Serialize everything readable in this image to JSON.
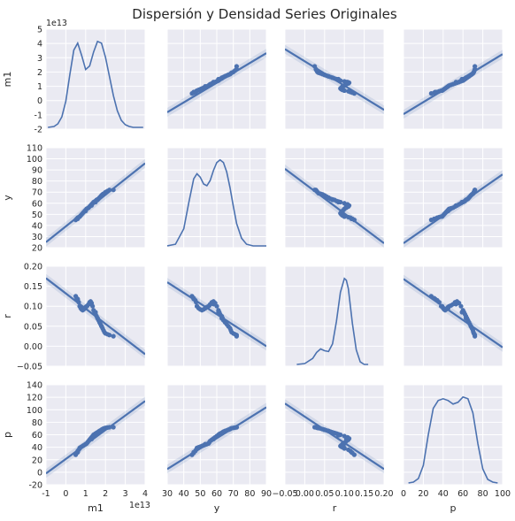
{
  "chart_data": {
    "type": "pairplot",
    "title": "Dispersión y Densidad Series Originales",
    "variables": [
      "m1",
      "y",
      "r",
      "p"
    ],
    "diag_kind": "kde",
    "off_diag_kind": "reg",
    "style": {
      "background": "#eaeaf2",
      "grid": true,
      "grid_color": "#ffffff",
      "series_color": "#4c72b0"
    },
    "axes": {
      "m1": {
        "label": "m1",
        "lim": [
          -1,
          4
        ],
        "ticks": [
          -1,
          0,
          1,
          2,
          3,
          4
        ],
        "y_lim": [
          -2,
          5
        ],
        "y_ticks": [
          -2,
          -1,
          0,
          1,
          2,
          3,
          4,
          5
        ],
        "offset_label": "1e13"
      },
      "y": {
        "label": "y",
        "lim": [
          30,
          90
        ],
        "ticks": [
          30,
          40,
          50,
          60,
          70,
          80,
          90
        ],
        "y_lim": [
          20,
          110
        ],
        "y_ticks": [
          20,
          30,
          40,
          50,
          60,
          70,
          80,
          90,
          100,
          110
        ]
      },
      "r": {
        "label": "r",
        "lim": [
          -0.05,
          0.2
        ],
        "ticks": [
          "−0.05",
          "0.00",
          "0.05",
          "0.10",
          "0.15",
          "0.20"
        ],
        "y_lim": [
          -0.05,
          0.2
        ],
        "y_ticks": [
          "−0.05",
          "0.00",
          "0.05",
          "0.10",
          "0.15",
          "0.20"
        ]
      },
      "p": {
        "label": "p",
        "lim": [
          0,
          100
        ],
        "ticks": [
          0,
          20,
          40,
          60,
          80,
          100
        ],
        "y_lim": [
          -20,
          140
        ],
        "y_ticks": [
          -20,
          0,
          20,
          40,
          60,
          80,
          100,
          120,
          140
        ]
      }
    },
    "points": {
      "m1": [
        0.5,
        0.55,
        0.6,
        0.65,
        0.7,
        0.75,
        0.8,
        0.85,
        0.9,
        0.95,
        1.0,
        1.05,
        1.1,
        1.15,
        1.2,
        1.25,
        1.3,
        1.35,
        1.4,
        1.45,
        1.5,
        1.55,
        1.6,
        1.65,
        1.7,
        1.75,
        1.8,
        1.85,
        1.9,
        1.95,
        2.0,
        2.1,
        2.2,
        2.4,
        0.6,
        0.7,
        1.0,
        1.3,
        1.5,
        1.6,
        1.7,
        1.8
      ],
      "y": [
        45,
        46,
        47,
        47.5,
        48,
        49,
        50,
        51,
        52,
        53,
        54,
        55,
        55.5,
        56,
        57,
        58,
        59,
        60,
        61,
        61.5,
        62,
        63,
        63.5,
        64,
        65,
        66,
        67,
        68,
        68.5,
        69,
        70,
        71,
        72,
        72,
        46,
        48,
        53,
        58,
        61,
        63,
        65,
        67
      ],
      "r": [
        0.125,
        0.12,
        0.115,
        0.11,
        0.1,
        0.095,
        0.092,
        0.09,
        0.092,
        0.095,
        0.098,
        0.1,
        0.102,
        0.105,
        0.11,
        0.112,
        0.108,
        0.1,
        0.09,
        0.085,
        0.08,
        0.075,
        0.07,
        0.065,
        0.06,
        0.055,
        0.05,
        0.045,
        0.04,
        0.035,
        0.032,
        0.03,
        0.028,
        0.025,
        0.118,
        0.1,
        0.095,
        0.105,
        0.085,
        0.07,
        0.06,
        0.05
      ],
      "p": [
        28,
        31,
        34,
        36,
        38,
        40,
        41,
        42,
        43,
        44,
        45,
        46,
        48,
        50,
        52,
        54,
        56,
        58,
        60,
        61,
        62,
        63,
        64,
        65,
        66,
        67,
        68,
        69,
        70,
        70.5,
        71,
        71.5,
        72,
        72,
        32,
        39,
        45,
        53,
        59,
        63,
        66,
        68
      ]
    },
    "kde": {
      "m1": {
        "x": [
          -0.9,
          -0.6,
          -0.4,
          -0.2,
          0,
          0.2,
          0.4,
          0.6,
          0.8,
          1.0,
          1.2,
          1.4,
          1.6,
          1.8,
          2.0,
          2.2,
          2.4,
          2.6,
          2.8,
          3.0,
          3.2,
          3.4,
          3.6,
          3.9
        ],
        "density": [
          0.0,
          0.01,
          0.04,
          0.12,
          0.3,
          0.6,
          0.88,
          0.96,
          0.82,
          0.66,
          0.7,
          0.86,
          0.98,
          0.96,
          0.8,
          0.58,
          0.36,
          0.19,
          0.08,
          0.03,
          0.01,
          0.0,
          0.0,
          0.0
        ]
      },
      "y": {
        "x": [
          30,
          35,
          40,
          43,
          46,
          48,
          50,
          52,
          54,
          56,
          58,
          60,
          62,
          64,
          66,
          68,
          70,
          72,
          75,
          78,
          82,
          86,
          90
        ],
        "density": [
          0.0,
          0.02,
          0.2,
          0.5,
          0.78,
          0.84,
          0.8,
          0.72,
          0.7,
          0.76,
          0.88,
          0.97,
          1.0,
          0.97,
          0.86,
          0.68,
          0.46,
          0.26,
          0.09,
          0.02,
          0.0,
          0.0,
          0.0
        ]
      },
      "r": {
        "x": [
          -0.02,
          0.0,
          0.02,
          0.03,
          0.04,
          0.05,
          0.06,
          0.07,
          0.08,
          0.09,
          0.1,
          0.105,
          0.11,
          0.12,
          0.13,
          0.14,
          0.15,
          0.16
        ],
        "density": [
          0.0,
          0.01,
          0.07,
          0.14,
          0.18,
          0.16,
          0.15,
          0.24,
          0.5,
          0.84,
          1.0,
          0.98,
          0.88,
          0.48,
          0.17,
          0.03,
          0.0,
          0.0
        ]
      },
      "p": {
        "x": [
          5,
          10,
          15,
          20,
          25,
          30,
          35,
          40,
          45,
          50,
          55,
          60,
          65,
          70,
          75,
          80,
          85,
          90,
          95
        ],
        "density": [
          0.0,
          0.01,
          0.05,
          0.2,
          0.55,
          0.85,
          0.94,
          0.96,
          0.94,
          0.9,
          0.92,
          0.98,
          0.96,
          0.8,
          0.45,
          0.16,
          0.04,
          0.01,
          0.0
        ]
      }
    },
    "regression_lines": {
      "m1~y": [
        [
          30,
          -0.82
        ],
        [
          90,
          3.32
        ]
      ],
      "m1~r": [
        [
          -0.05,
          3.6
        ],
        [
          0.2,
          -0.65
        ]
      ],
      "m1~p": [
        [
          0,
          -0.95
        ],
        [
          100,
          3.25
        ]
      ],
      "y~m1": [
        [
          -1,
          25
        ],
        [
          4,
          96
        ]
      ],
      "y~r": [
        [
          -0.05,
          91
        ],
        [
          0.2,
          24
        ]
      ],
      "y~p": [
        [
          0,
          24
        ],
        [
          100,
          86
        ]
      ],
      "r~m1": [
        [
          -1,
          0.17
        ],
        [
          4,
          -0.02
        ]
      ],
      "r~y": [
        [
          30,
          0.16
        ],
        [
          90,
          0.0
        ]
      ],
      "r~p": [
        [
          0,
          0.168
        ],
        [
          100,
          -0.003
        ]
      ],
      "p~m1": [
        [
          -1,
          -2
        ],
        [
          4,
          114
        ]
      ],
      "p~y": [
        [
          30,
          5
        ],
        [
          90,
          104
        ]
      ],
      "p~r": [
        [
          -0.05,
          110
        ],
        [
          0.2,
          5
        ]
      ]
    }
  }
}
